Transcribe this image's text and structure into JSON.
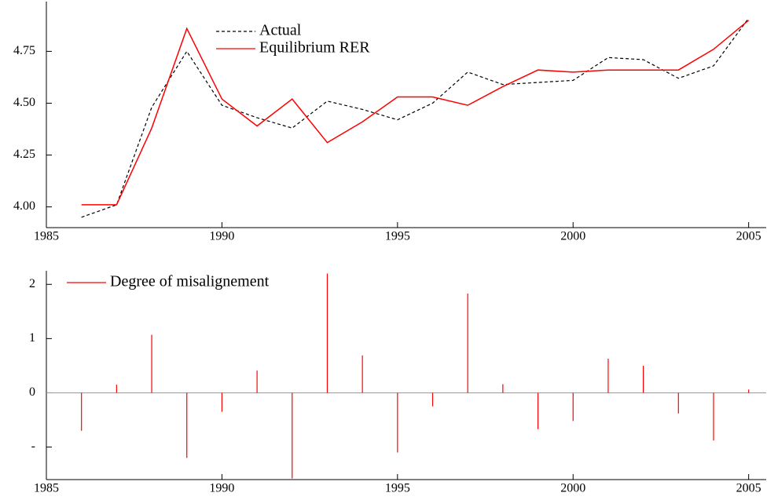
{
  "chart_data": [
    {
      "type": "line",
      "x": [
        1986,
        1987,
        1988,
        1989,
        1990,
        1991,
        1992,
        1993,
        1994,
        1995,
        1996,
        1997,
        1998,
        1999,
        2000,
        2001,
        2002,
        2003,
        2004,
        2005
      ],
      "series": [
        {
          "name": "Actual",
          "color": "#000000",
          "dashed": true,
          "values": [
            3.95,
            4.01,
            4.48,
            4.75,
            4.49,
            4.43,
            4.38,
            4.51,
            4.47,
            4.42,
            4.5,
            4.65,
            4.59,
            4.6,
            4.61,
            4.72,
            4.71,
            4.62,
            4.68,
            4.91
          ]
        },
        {
          "name": "Equilibrium RER",
          "color": "#ff0000",
          "dashed": false,
          "values": [
            4.01,
            4.01,
            4.38,
            4.86,
            4.52,
            4.39,
            4.52,
            4.31,
            4.41,
            4.53,
            4.53,
            4.49,
            4.58,
            4.66,
            4.65,
            4.66,
            4.66,
            4.66,
            4.76,
            4.9
          ]
        }
      ],
      "xlim": [
        1985,
        2005.5
      ],
      "xticks": [
        1985,
        1990,
        1995,
        2000,
        2005
      ],
      "ylim": [
        3.9,
        4.99
      ],
      "yticks": [
        {
          "value": 4,
          "label": "4.00"
        },
        {
          "value": 4.25,
          "label": "4.25"
        },
        {
          "value": 4.5,
          "label": "4.50"
        },
        {
          "value": 4.75,
          "label": "4.75"
        }
      ]
    },
    {
      "type": "stem",
      "x": [
        1986,
        1987,
        1988,
        1989,
        1990,
        1991,
        1992,
        1993,
        1994,
        1995,
        1996,
        1997,
        1998,
        1999,
        2000,
        2001,
        2002,
        2003,
        2004,
        2005
      ],
      "series": [
        {
          "name": "Degree of misalignement",
          "color": "#ff0000",
          "values": [
            -0.7,
            0.15,
            1.07,
            -1.2,
            -0.35,
            0.41,
            -1.58,
            2.2,
            0.69,
            -1.1,
            -0.25,
            1.83,
            0.16,
            -0.67,
            -0.52,
            0.63,
            0.5,
            -0.38,
            -0.88,
            0.06
          ]
        }
      ],
      "xlim": [
        1985,
        2005.5
      ],
      "xticks": [
        1985,
        1990,
        1995,
        2000,
        2005
      ],
      "ylim": [
        -1.6,
        2.25
      ],
      "yticks": [
        {
          "value": -1,
          "label": "-"
        },
        0,
        1,
        2
      ],
      "zero_line": true
    }
  ]
}
